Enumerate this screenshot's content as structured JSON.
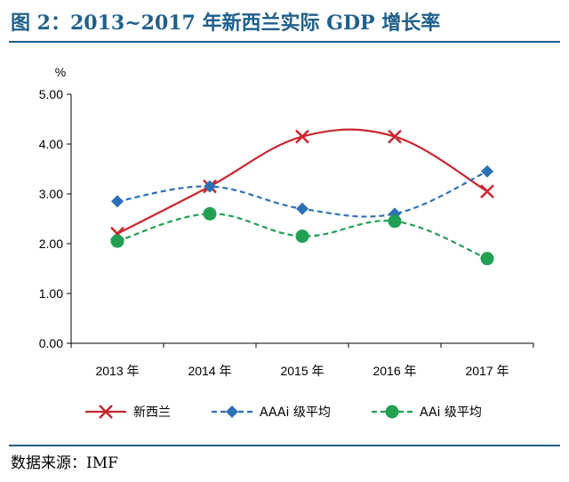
{
  "header": {
    "title": "图 2：2013~2017 年新西兰实际 GDP 增长率"
  },
  "footer": {
    "source": "数据来源：IMF"
  },
  "colors": {
    "accent": "#1f5f8b",
    "nz": "#c8262c",
    "aaa": "#2e6fb6",
    "aa": "#21a053"
  },
  "chart_data": {
    "type": "line",
    "unit_label": "%",
    "categories": [
      "2013 年",
      "2014 年",
      "2015 年",
      "2016 年",
      "2017 年"
    ],
    "y_ticks": [
      "0.00",
      "1.00",
      "2.00",
      "3.00",
      "4.00",
      "5.00"
    ],
    "ylim": [
      0,
      5
    ],
    "grid": false,
    "legend_position": "bottom",
    "series": [
      {
        "name": "新西兰",
        "values": [
          2.2,
          3.15,
          4.15,
          4.15,
          3.05
        ],
        "color": "#c8262c",
        "marker": "x",
        "dash": "solid"
      },
      {
        "name": "AAAi 级平均",
        "values": [
          2.85,
          3.15,
          2.7,
          2.6,
          3.45
        ],
        "color": "#2e6fb6",
        "marker": "diamond",
        "dash": "dashed"
      },
      {
        "name": "AAi 级平均",
        "values": [
          2.05,
          2.6,
          2.15,
          2.45,
          1.7
        ],
        "color": "#21a053",
        "marker": "circle",
        "dash": "dashed"
      }
    ]
  }
}
